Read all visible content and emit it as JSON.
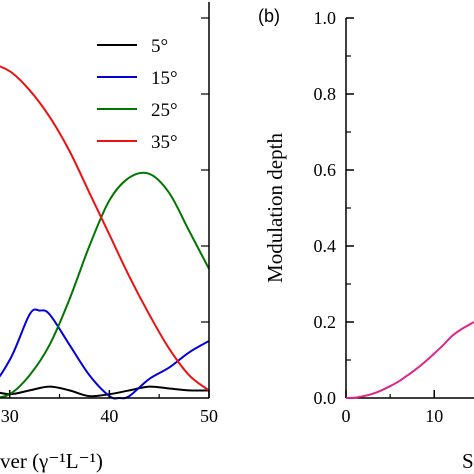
{
  "chart_data": [
    {
      "type": "line",
      "panel": "left (cropped)",
      "xlabel": "ver (γ⁻¹L⁻¹)",
      "xlim": [
        22,
        50
      ],
      "ylim": [
        0,
        1.0
      ],
      "x_ticks": [
        "30",
        "40",
        "50"
      ],
      "legend_position": "top-right",
      "series": [
        {
          "name": "5°",
          "color": "#000000",
          "x": [
            22,
            24,
            26,
            28,
            30,
            32,
            34,
            36,
            38,
            40,
            42,
            44,
            46,
            48,
            50
          ],
          "y": [
            0.01,
            0.02,
            0.03,
            0.02,
            0.01,
            0.02,
            0.03,
            0.02,
            0.005,
            0.01,
            0.02,
            0.03,
            0.025,
            0.02,
            0.02
          ]
        },
        {
          "name": "15°",
          "color": "#0000dd",
          "x": [
            22,
            24,
            26,
            28,
            30,
            32,
            33,
            34,
            36,
            38,
            40,
            41,
            42,
            44,
            46,
            48,
            50
          ],
          "y": [
            0.05,
            0.12,
            0.12,
            0.04,
            0.1,
            0.22,
            0.23,
            0.22,
            0.14,
            0.06,
            0.005,
            0.0,
            0.005,
            0.05,
            0.08,
            0.12,
            0.15
          ]
        },
        {
          "name": "25°",
          "color": "#007700",
          "x": [
            22,
            24,
            26,
            28,
            30,
            32,
            34,
            36,
            38,
            40,
            42,
            44,
            46,
            48,
            50
          ],
          "y": [
            0.08,
            0.0,
            0.0,
            0.0,
            0.01,
            0.06,
            0.14,
            0.26,
            0.4,
            0.52,
            0.58,
            0.59,
            0.54,
            0.44,
            0.34
          ]
        },
        {
          "name": "35°",
          "color": "#ee1111",
          "x": [
            22,
            24,
            26,
            28,
            30,
            32,
            34,
            36,
            38,
            40,
            42,
            44,
            46,
            48,
            50
          ],
          "y": [
            0.8,
            0.85,
            0.88,
            0.88,
            0.86,
            0.81,
            0.74,
            0.65,
            0.54,
            0.43,
            0.32,
            0.22,
            0.13,
            0.06,
            0.02
          ]
        }
      ]
    },
    {
      "type": "line",
      "panel_label": "(b)",
      "ylabel": "Modulation depth",
      "xlabel": "S",
      "xlim": [
        0,
        14.5
      ],
      "ylim": [
        0,
        1.0
      ],
      "x_ticks": [
        "0",
        "10"
      ],
      "y_ticks": [
        "0.0",
        "0.2",
        "0.4",
        "0.6",
        "0.8",
        "1.0"
      ],
      "series": [
        {
          "color": "#e0268a",
          "x": [
            0,
            1,
            2,
            3,
            4,
            5,
            6,
            7,
            8,
            9,
            10,
            11,
            12,
            13,
            14.5
          ],
          "y": [
            0.0,
            0.001,
            0.005,
            0.011,
            0.02,
            0.031,
            0.044,
            0.06,
            0.077,
            0.096,
            0.117,
            0.139,
            0.163,
            0.18,
            0.2
          ]
        }
      ]
    }
  ]
}
